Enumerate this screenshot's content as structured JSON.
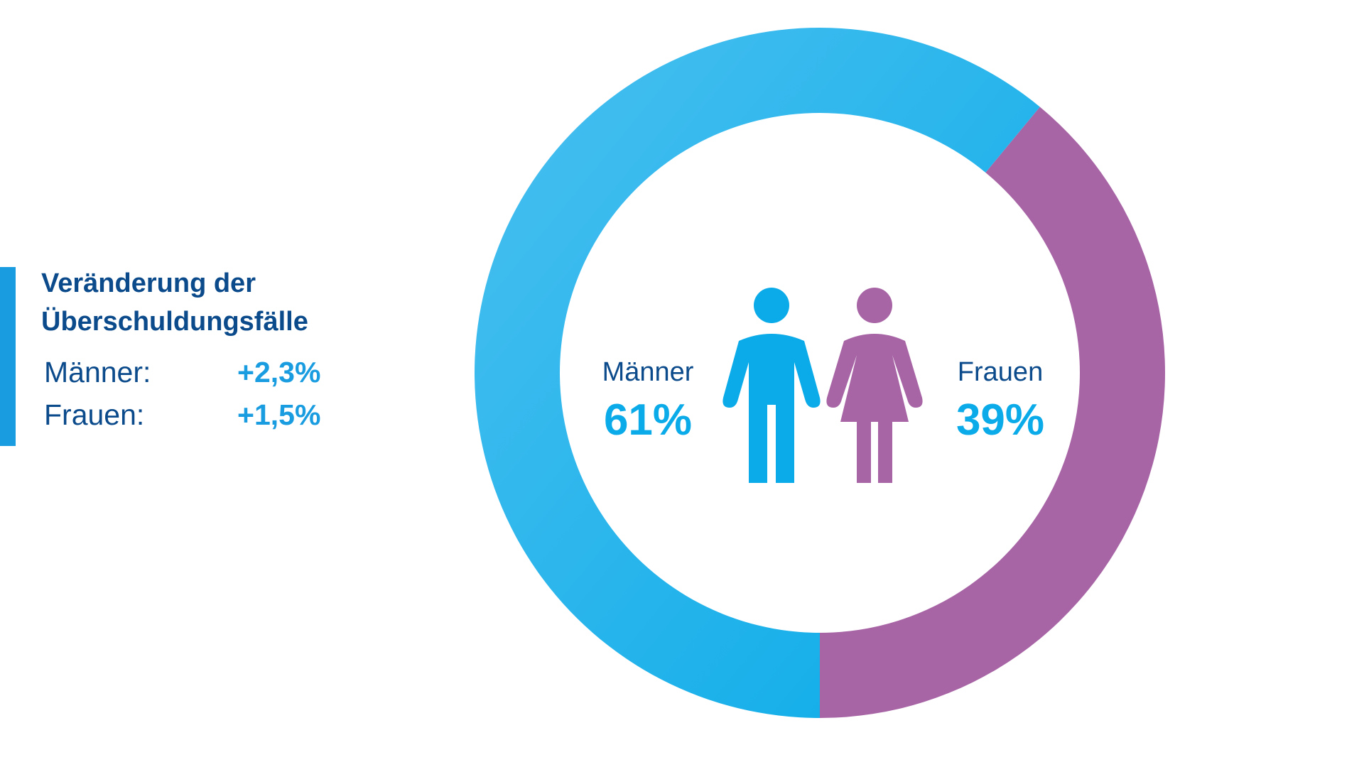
{
  "colors": {
    "men": "#0aabe8",
    "men_light": "#4ac0f0",
    "women": "#a865a6",
    "title": "#0b4a8b",
    "value": "#1a9de0"
  },
  "info_panel": {
    "title_line1": "Veränderung der",
    "title_line2": "Überschuldungsfälle",
    "rows": [
      {
        "label": "Männer:",
        "value": "+2,3%"
      },
      {
        "label": "Frauen:",
        "value": "+1,5%"
      }
    ]
  },
  "chart_data": {
    "type": "pie",
    "donut": true,
    "title": "",
    "slices": [
      {
        "label": "Männer",
        "value": 61,
        "value_label": "61%",
        "color": "#0aabe8",
        "icon": "man-icon"
      },
      {
        "label": "Frauen",
        "value": 39,
        "value_label": "39%",
        "color": "#a865a6",
        "icon": "woman-icon"
      }
    ]
  }
}
